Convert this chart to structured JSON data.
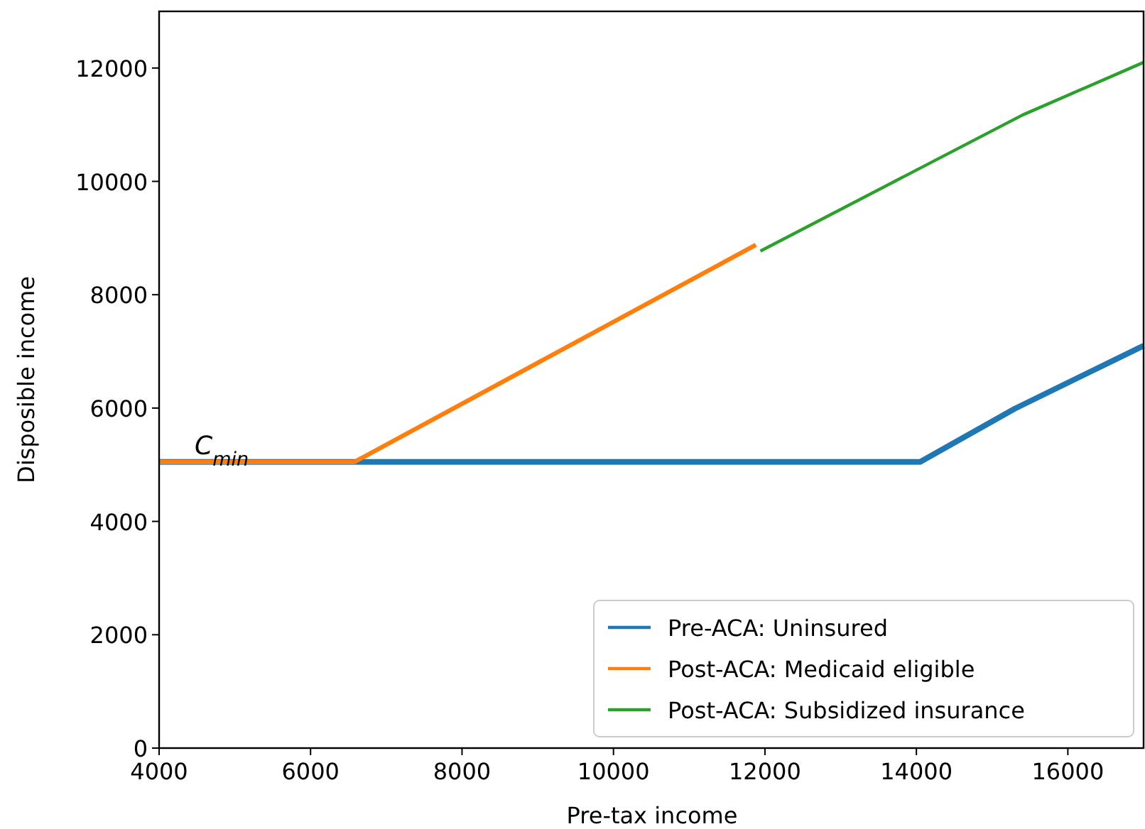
{
  "chart_data": {
    "type": "line",
    "xlabel": "Pre-tax income",
    "ylabel": "Disposible income",
    "xlim": [
      4000,
      17000
    ],
    "ylim": [
      0,
      13000
    ],
    "xticks": [
      4000,
      6000,
      8000,
      10000,
      12000,
      14000,
      16000
    ],
    "yticks": [
      0,
      2000,
      4000,
      6000,
      8000,
      10000,
      12000
    ],
    "series": [
      {
        "name": "Pre-ACA: Uninsured",
        "color": "#1f77b4",
        "x": [
          4000,
          14050,
          15300,
          17000
        ],
        "values": [
          5050,
          5050,
          5990,
          7100
        ]
      },
      {
        "name": "Post-ACA: Medicaid eligible",
        "color": "#ff7f0e",
        "x": [
          4000,
          6580,
          11880
        ],
        "values": [
          5050,
          5050,
          8880
        ]
      },
      {
        "name": "Post-ACA: Subsidized insurance",
        "color": "#2ca02c",
        "x": [
          11940,
          15400,
          17000
        ],
        "values": [
          8770,
          11170,
          12100
        ]
      }
    ],
    "annotations": [
      "C$_{min}$"
    ],
    "legend": "bottom right",
    "grid": false
  }
}
